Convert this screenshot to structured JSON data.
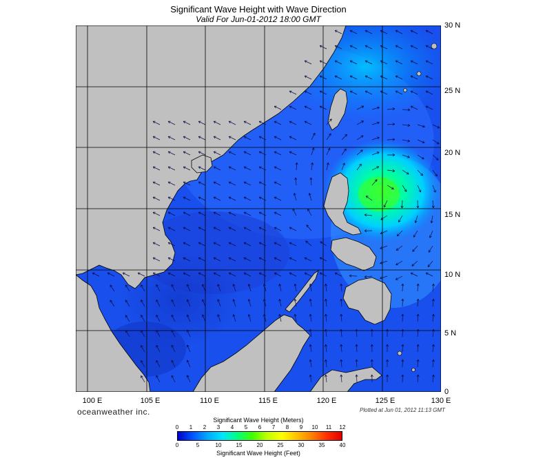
{
  "header": {
    "title": "Significant Wave Height with Wave Direction",
    "subtitle": "Valid For Jun-01-2012 18:00 GMT"
  },
  "axes": {
    "lon_labels": [
      "100 E",
      "105 E",
      "110 E",
      "115 E",
      "120 E",
      "125 E",
      "130 E"
    ],
    "lat_labels": [
      "30 N",
      "25 N",
      "20 N",
      "15 N",
      "10 N",
      "5 N",
      "0"
    ],
    "lon_range": [
      99,
      130
    ],
    "lat_range": [
      0,
      30
    ],
    "grid": true
  },
  "footer": {
    "brand": "oceanweather inc.",
    "plotted": "Plotted at Jun 01, 2012 11:13 GMT"
  },
  "legend": {
    "meters_title": "Significant Wave Height (Meters)",
    "feet_title": "Significant Wave Height (Feet)",
    "meters_ticks": [
      "0",
      "1",
      "2",
      "3",
      "4",
      "5",
      "6",
      "7",
      "8",
      "9",
      "10",
      "11",
      "12"
    ],
    "feet_ticks": [
      "0",
      "5",
      "10",
      "15",
      "20",
      "25",
      "30",
      "35",
      "40"
    ]
  },
  "colors": {
    "land": "#c0c0c0",
    "coast": "#000000",
    "grid": "#000000",
    "arrow": "#0a0a40",
    "scale": [
      "#0000cc",
      "#0055ff",
      "#00aaff",
      "#00e5ff",
      "#00ff80",
      "#40ff00",
      "#c0ff00",
      "#ffff00",
      "#ffc000",
      "#ff8000",
      "#ff3000",
      "#e00000"
    ]
  }
}
